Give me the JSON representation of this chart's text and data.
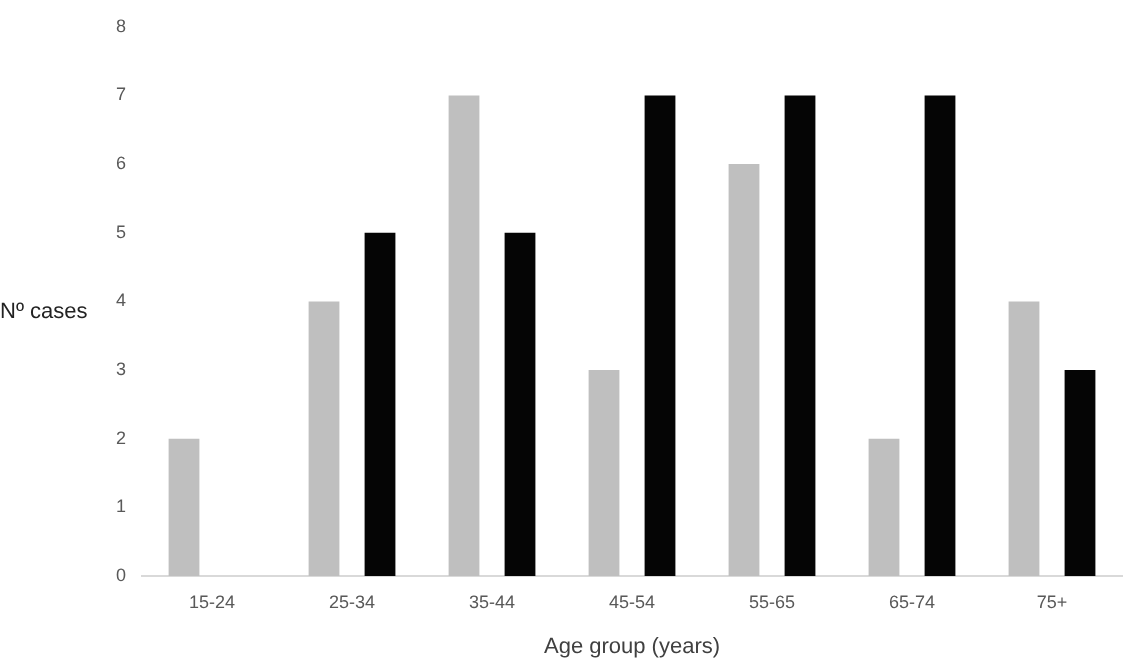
{
  "chart_data": {
    "type": "bar",
    "xlabel": "Age group (years)",
    "ylabel": "Nº cases",
    "categories": [
      "15-24",
      "25-34",
      "35-44",
      "45-54",
      "55-65",
      "65-74",
      "75+"
    ],
    "series": [
      {
        "color": "#bfbfbf",
        "values": [
          2,
          4,
          7,
          3,
          6,
          2,
          4
        ]
      },
      {
        "color": "#050505",
        "values": [
          0,
          5,
          5,
          7,
          7,
          7,
          3
        ]
      }
    ],
    "ylim": [
      0,
      8
    ],
    "yticks": [
      0,
      1,
      2,
      3,
      4,
      5,
      6,
      7,
      8
    ],
    "grid": false,
    "legend": false
  }
}
